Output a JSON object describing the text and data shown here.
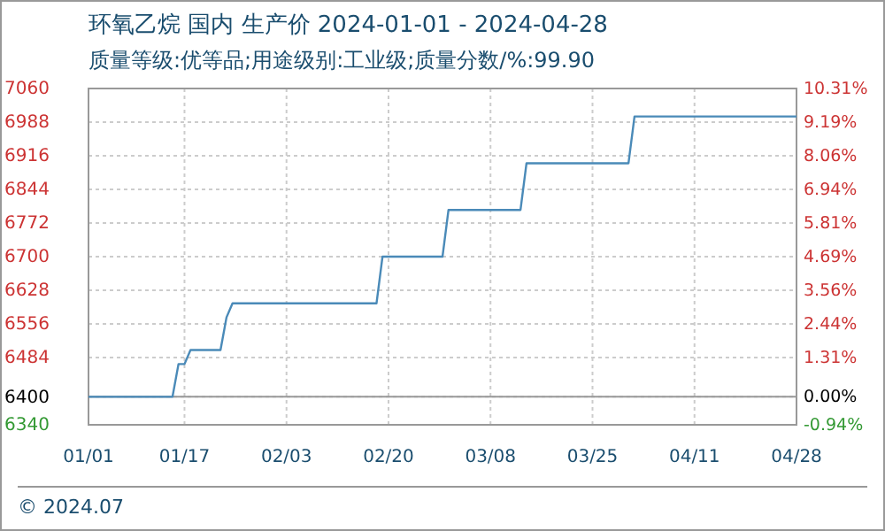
{
  "chart_data": {
    "type": "line",
    "title": "环氧乙烷 国内 生产价 2024-01-01 - 2024-04-28",
    "subtitle": "质量等级:优等品;用途级别:工业级;质量分数/%:99.90",
    "x": [
      "2024-01-01",
      "2024-01-15",
      "2024-01-16",
      "2024-01-17",
      "2024-01-18",
      "2024-01-23",
      "2024-01-24",
      "2024-01-25",
      "2024-02-18",
      "2024-02-19",
      "2024-02-29",
      "2024-03-01",
      "2024-03-13",
      "2024-03-14",
      "2024-03-31",
      "2024-04-01",
      "2024-04-28"
    ],
    "series": [
      {
        "color": "#4a8ab8",
        "values": [
          6400,
          6400,
          6470,
          6470,
          6500,
          6500,
          6570,
          6600,
          6600,
          6700,
          6700,
          6800,
          6800,
          6900,
          6900,
          7000,
          7000
        ]
      }
    ],
    "xlim": [
      "2024-01-01",
      "2024-04-28"
    ],
    "xticks": [
      {
        "value": "2024-01-01",
        "label": "01/01"
      },
      {
        "value": "2024-01-17",
        "label": "01/17"
      },
      {
        "value": "2024-02-03",
        "label": "02/03"
      },
      {
        "value": "2024-02-20",
        "label": "02/20"
      },
      {
        "value": "2024-03-08",
        "label": "03/08"
      },
      {
        "value": "2024-03-25",
        "label": "03/25"
      },
      {
        "value": "2024-04-11",
        "label": "04/11"
      },
      {
        "value": "2024-04-28",
        "label": "04/28"
      }
    ],
    "ylim": [
      6340,
      7060
    ],
    "yticks": [
      6340,
      6400,
      6484,
      6556,
      6628,
      6700,
      6772,
      6844,
      6916,
      6988,
      7060
    ],
    "y2lim": [
      -0.94,
      10.31
    ],
    "y2ticks": [
      {
        "value": -0.94,
        "label": "-0.94%"
      },
      {
        "value": 0,
        "label": "0.00%"
      },
      {
        "value": 1.31,
        "label": "1.31%"
      },
      {
        "value": 2.44,
        "label": "2.44%"
      },
      {
        "value": 3.56,
        "label": "3.56%"
      },
      {
        "value": 4.69,
        "label": "4.69%"
      },
      {
        "value": 5.81,
        "label": "5.81%"
      },
      {
        "value": 6.94,
        "label": "6.94%"
      },
      {
        "value": 8.06,
        "label": "8.06%"
      },
      {
        "value": 9.19,
        "label": "9.19%"
      },
      {
        "value": 10.31,
        "label": "10.31%"
      }
    ],
    "ref_lines": [
      {
        "axis": "y",
        "value": 6400,
        "color": "#999999"
      }
    ],
    "grid": true,
    "line_style": "solid",
    "marker": "none",
    "annotations": [
      "© 2024.07"
    ]
  }
}
